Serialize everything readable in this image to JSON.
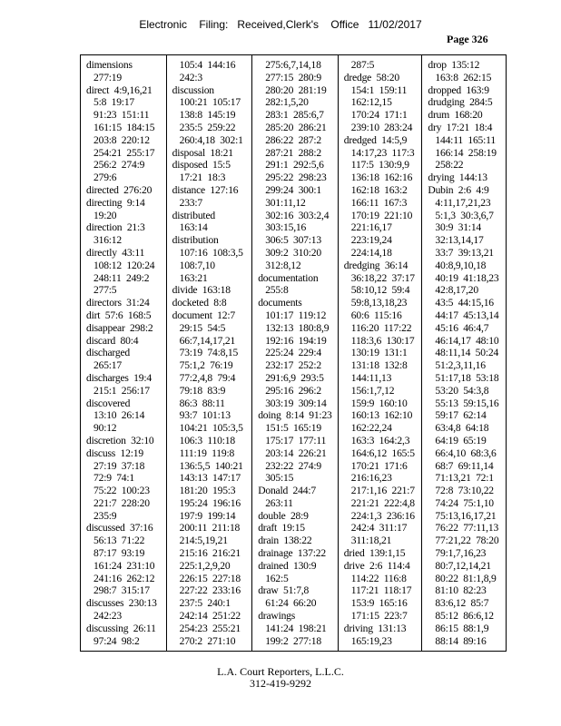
{
  "header": {
    "text": "Electronic    Filing:   Received,Clerk's    Office   11/02/2017",
    "page": "Page 326"
  },
  "footer": {
    "company": "L.A. Court Reporters, L.L.C.",
    "phone": "312-419-9292"
  },
  "columns": [
    [
      {
        "term": "dimensions",
        "first": "",
        "more": [
          "277:19"
        ]
      },
      {
        "term": "direct",
        "first": "4:9,16,21",
        "more": [
          "5:8  19:17",
          "91:23  151:11",
          "161:15  184:15",
          "203:8  220:12",
          "254:21  255:17",
          "256:2  274:9",
          "279:6"
        ]
      },
      {
        "term": "directed",
        "first": "276:20",
        "more": []
      },
      {
        "term": "directing",
        "first": "9:14",
        "more": [
          "19:20"
        ]
      },
      {
        "term": "direction",
        "first": "21:3",
        "more": [
          "316:12"
        ]
      },
      {
        "term": "directly",
        "first": "43:11",
        "more": [
          "108:12  120:24",
          "248:11  249:2",
          "277:5"
        ]
      },
      {
        "term": "directors",
        "first": "31:24",
        "more": []
      },
      {
        "term": "dirt",
        "first": "57:6  168:5",
        "more": []
      },
      {
        "term": "disappear",
        "first": "298:2",
        "more": []
      },
      {
        "term": "discard",
        "first": "80:4",
        "more": []
      },
      {
        "term": "discharged",
        "first": "",
        "more": [
          "265:17"
        ]
      },
      {
        "term": "discharges",
        "first": "19:4",
        "more": [
          "215:1  256:17"
        ]
      },
      {
        "term": "discovered",
        "first": "",
        "more": [
          "13:10  26:14",
          "90:12"
        ]
      },
      {
        "term": "discretion",
        "first": "32:10",
        "more": []
      },
      {
        "term": "discuss",
        "first": "12:19",
        "more": [
          "27:19  37:18",
          "72:9  74:1",
          "75:22  100:23",
          "221:7  228:20",
          "235:9"
        ]
      },
      {
        "term": "discussed",
        "first": "37:16",
        "more": [
          "56:13  71:22",
          "87:17  93:19",
          "161:24  231:10",
          "241:16  262:12",
          "298:7  315:17"
        ]
      },
      {
        "term": "discusses",
        "first": "230:13",
        "more": [
          "242:23"
        ]
      },
      {
        "term": "discussing",
        "first": "26:11",
        "more": [
          "97:24  98:2"
        ]
      }
    ],
    [
      {
        "term": "",
        "first": "",
        "more": [
          "105:4  144:16",
          "242:3"
        ]
      },
      {
        "term": "discussion",
        "first": "",
        "more": [
          "100:21  105:17",
          "138:8  145:19",
          "235:5  259:22",
          "260:4,18  302:1"
        ]
      },
      {
        "term": "disposal",
        "first": "18:21",
        "more": []
      },
      {
        "term": "disposed",
        "first": "15:5",
        "more": [
          "17:21  18:3"
        ]
      },
      {
        "term": "distance",
        "first": "127:16",
        "more": [
          "233:7"
        ]
      },
      {
        "term": "distributed",
        "first": "",
        "more": [
          "163:14"
        ]
      },
      {
        "term": "distribution",
        "first": "",
        "more": [
          "107:16  108:3,5",
          "108:7,10",
          "163:21"
        ]
      },
      {
        "term": "divide",
        "first": "163:18",
        "more": []
      },
      {
        "term": "docketed",
        "first": "8:8",
        "more": []
      },
      {
        "term": "document",
        "first": "12:7",
        "more": [
          "29:15  54:5",
          "66:7,14,17,21",
          "73:19  74:8,15",
          "75:1,2  76:19",
          "77:2,4,8  79:4",
          "79:18  83:9",
          "86:3  88:11",
          "93:7  101:13",
          "104:21  105:3,5",
          "106:3  110:18",
          "111:19  119:8",
          "136:5,5  140:21",
          "143:13  147:17",
          "181:20  195:3",
          "195:24  196:16",
          "197:9  199:14",
          "200:11  211:18",
          "214:5,19,21",
          "215:16  216:21",
          "225:1,2,9,20",
          "226:15  227:18",
          "227:22  233:16",
          "237:5  240:1",
          "242:14  251:22",
          "254:23  255:21",
          "270:2  271:10"
        ]
      }
    ],
    [
      {
        "term": "",
        "first": "",
        "more": [
          "275:6,7,14,18",
          "277:15  280:9",
          "280:20  281:19",
          "282:1,5,20",
          "283:1  285:6,7",
          "285:20  286:21",
          "286:22  287:2",
          "287:21  288:2",
          "291:1  292:5,6",
          "295:22  298:23",
          "299:24  300:1",
          "301:11,12",
          "302:16  303:2,4",
          "303:15,16",
          "306:5  307:13",
          "309:2  310:20",
          "312:8,12"
        ]
      },
      {
        "term": "documentation",
        "first": "",
        "more": [
          "255:8"
        ]
      },
      {
        "term": "documents",
        "first": "",
        "more": [
          "101:17  119:12",
          "132:13  180:8,9",
          "192:16  194:19",
          "225:24  229:4",
          "232:17  252:2",
          "291:6,9  293:5",
          "295:16  296:2",
          "303:19  309:14"
        ]
      },
      {
        "term": "doing",
        "first": "8:14  91:23",
        "more": [
          "151:5  165:19",
          "175:17  177:11",
          "203:14  226:21",
          "232:22  274:9",
          "305:15"
        ]
      },
      {
        "term": "Donald",
        "first": "244:7",
        "more": [
          "263:11"
        ]
      },
      {
        "term": "double",
        "first": "28:9",
        "more": []
      },
      {
        "term": "draft",
        "first": "19:15",
        "more": []
      },
      {
        "term": "drain",
        "first": "138:22",
        "more": []
      },
      {
        "term": "drainage",
        "first": "137:22",
        "more": []
      },
      {
        "term": "drained",
        "first": "130:9",
        "more": [
          "162:5"
        ]
      },
      {
        "term": "draw",
        "first": "51:7,8",
        "more": [
          "61:24  66:20"
        ]
      },
      {
        "term": "drawings",
        "first": "",
        "more": [
          "141:24  198:21",
          "199:2  277:18"
        ]
      }
    ],
    [
      {
        "term": "",
        "first": "",
        "more": [
          "287:5"
        ]
      },
      {
        "term": "dredge",
        "first": "58:20",
        "more": [
          "154:1  159:11",
          "162:12,15",
          "170:24  171:1",
          "239:10  283:24"
        ]
      },
      {
        "term": "dredged",
        "first": "14:5,9",
        "more": [
          "14:17,23  117:3",
          "117:5  130:9,9",
          "136:18  162:16",
          "162:18  163:2",
          "166:11  167:3",
          "170:19  221:10",
          "221:16,17",
          "223:19,24",
          "224:14,18"
        ]
      },
      {
        "term": "dredging",
        "first": "36:14",
        "more": [
          "36:18,22  37:17",
          "58:10,12  59:4",
          "59:8,13,18,23",
          "60:6  115:16",
          "116:20  117:22",
          "118:3,6  130:17",
          "130:19  131:1",
          "131:18  132:8",
          "144:11,13",
          "156:1,7,12",
          "159:9  160:10",
          "160:13  162:10",
          "162:22,24",
          "163:3  164:2,3",
          "164:6,12  165:5",
          "170:21  171:6",
          "216:16,23",
          "217:1,16  221:7",
          "221:21  222:4,8",
          "224:1,3  236:16",
          "242:4  311:17",
          "311:18,21"
        ]
      },
      {
        "term": "dried",
        "first": "139:1,15",
        "more": []
      },
      {
        "term": "drive",
        "first": "2:6  114:4",
        "more": [
          "114:22  116:8",
          "117:21  118:17",
          "153:9  165:16",
          "171:15  223:7"
        ]
      },
      {
        "term": "driving",
        "first": "131:13",
        "more": [
          "165:19,23"
        ]
      }
    ],
    [
      {
        "term": "drop",
        "first": "135:12",
        "more": [
          "163:8  262:15"
        ]
      },
      {
        "term": "dropped",
        "first": "163:9",
        "more": []
      },
      {
        "term": "drudging",
        "first": "284:5",
        "more": []
      },
      {
        "term": "drum",
        "first": "168:20",
        "more": []
      },
      {
        "term": "dry",
        "first": "17:21  18:4",
        "more": [
          "144:11  165:11",
          "166:14  258:19",
          "258:22"
        ]
      },
      {
        "term": "drying",
        "first": "144:13",
        "more": []
      },
      {
        "term": "Dubin",
        "first": "2:6  4:9",
        "more": [
          "4:11,17,21,23",
          "5:1,3  30:3,6,7",
          "30:9  31:14",
          "32:13,14,17",
          "33:7  39:13,21",
          "40:8,9,10,18",
          "40:19  41:18,23",
          "42:8,17,20",
          "43:5  44:15,16",
          "44:17  45:13,14",
          "45:16  46:4,7",
          "46:14,17  48:10",
          "48:11,14  50:24",
          "51:2,3,11,16",
          "51:17,18  53:18",
          "53:20  54:3,8",
          "55:13  59:15,16",
          "59:17  62:14",
          "63:4,8  64:18",
          "64:19  65:19",
          "66:4,10  68:3,6",
          "68:7  69:11,14",
          "71:13,21  72:1",
          "72:8  73:10,22",
          "74:24  75:1,10",
          "75:13,16,17,21",
          "76:22  77:11,13",
          "77:21,22  78:20",
          "79:1,7,16,23",
          "80:7,12,14,21",
          "80:22  81:1,8,9",
          "81:10  82:23",
          "83:6,12  85:7",
          "85:12  86:6,12",
          "86:15  88:1,9",
          "88:14  89:16"
        ]
      }
    ]
  ]
}
